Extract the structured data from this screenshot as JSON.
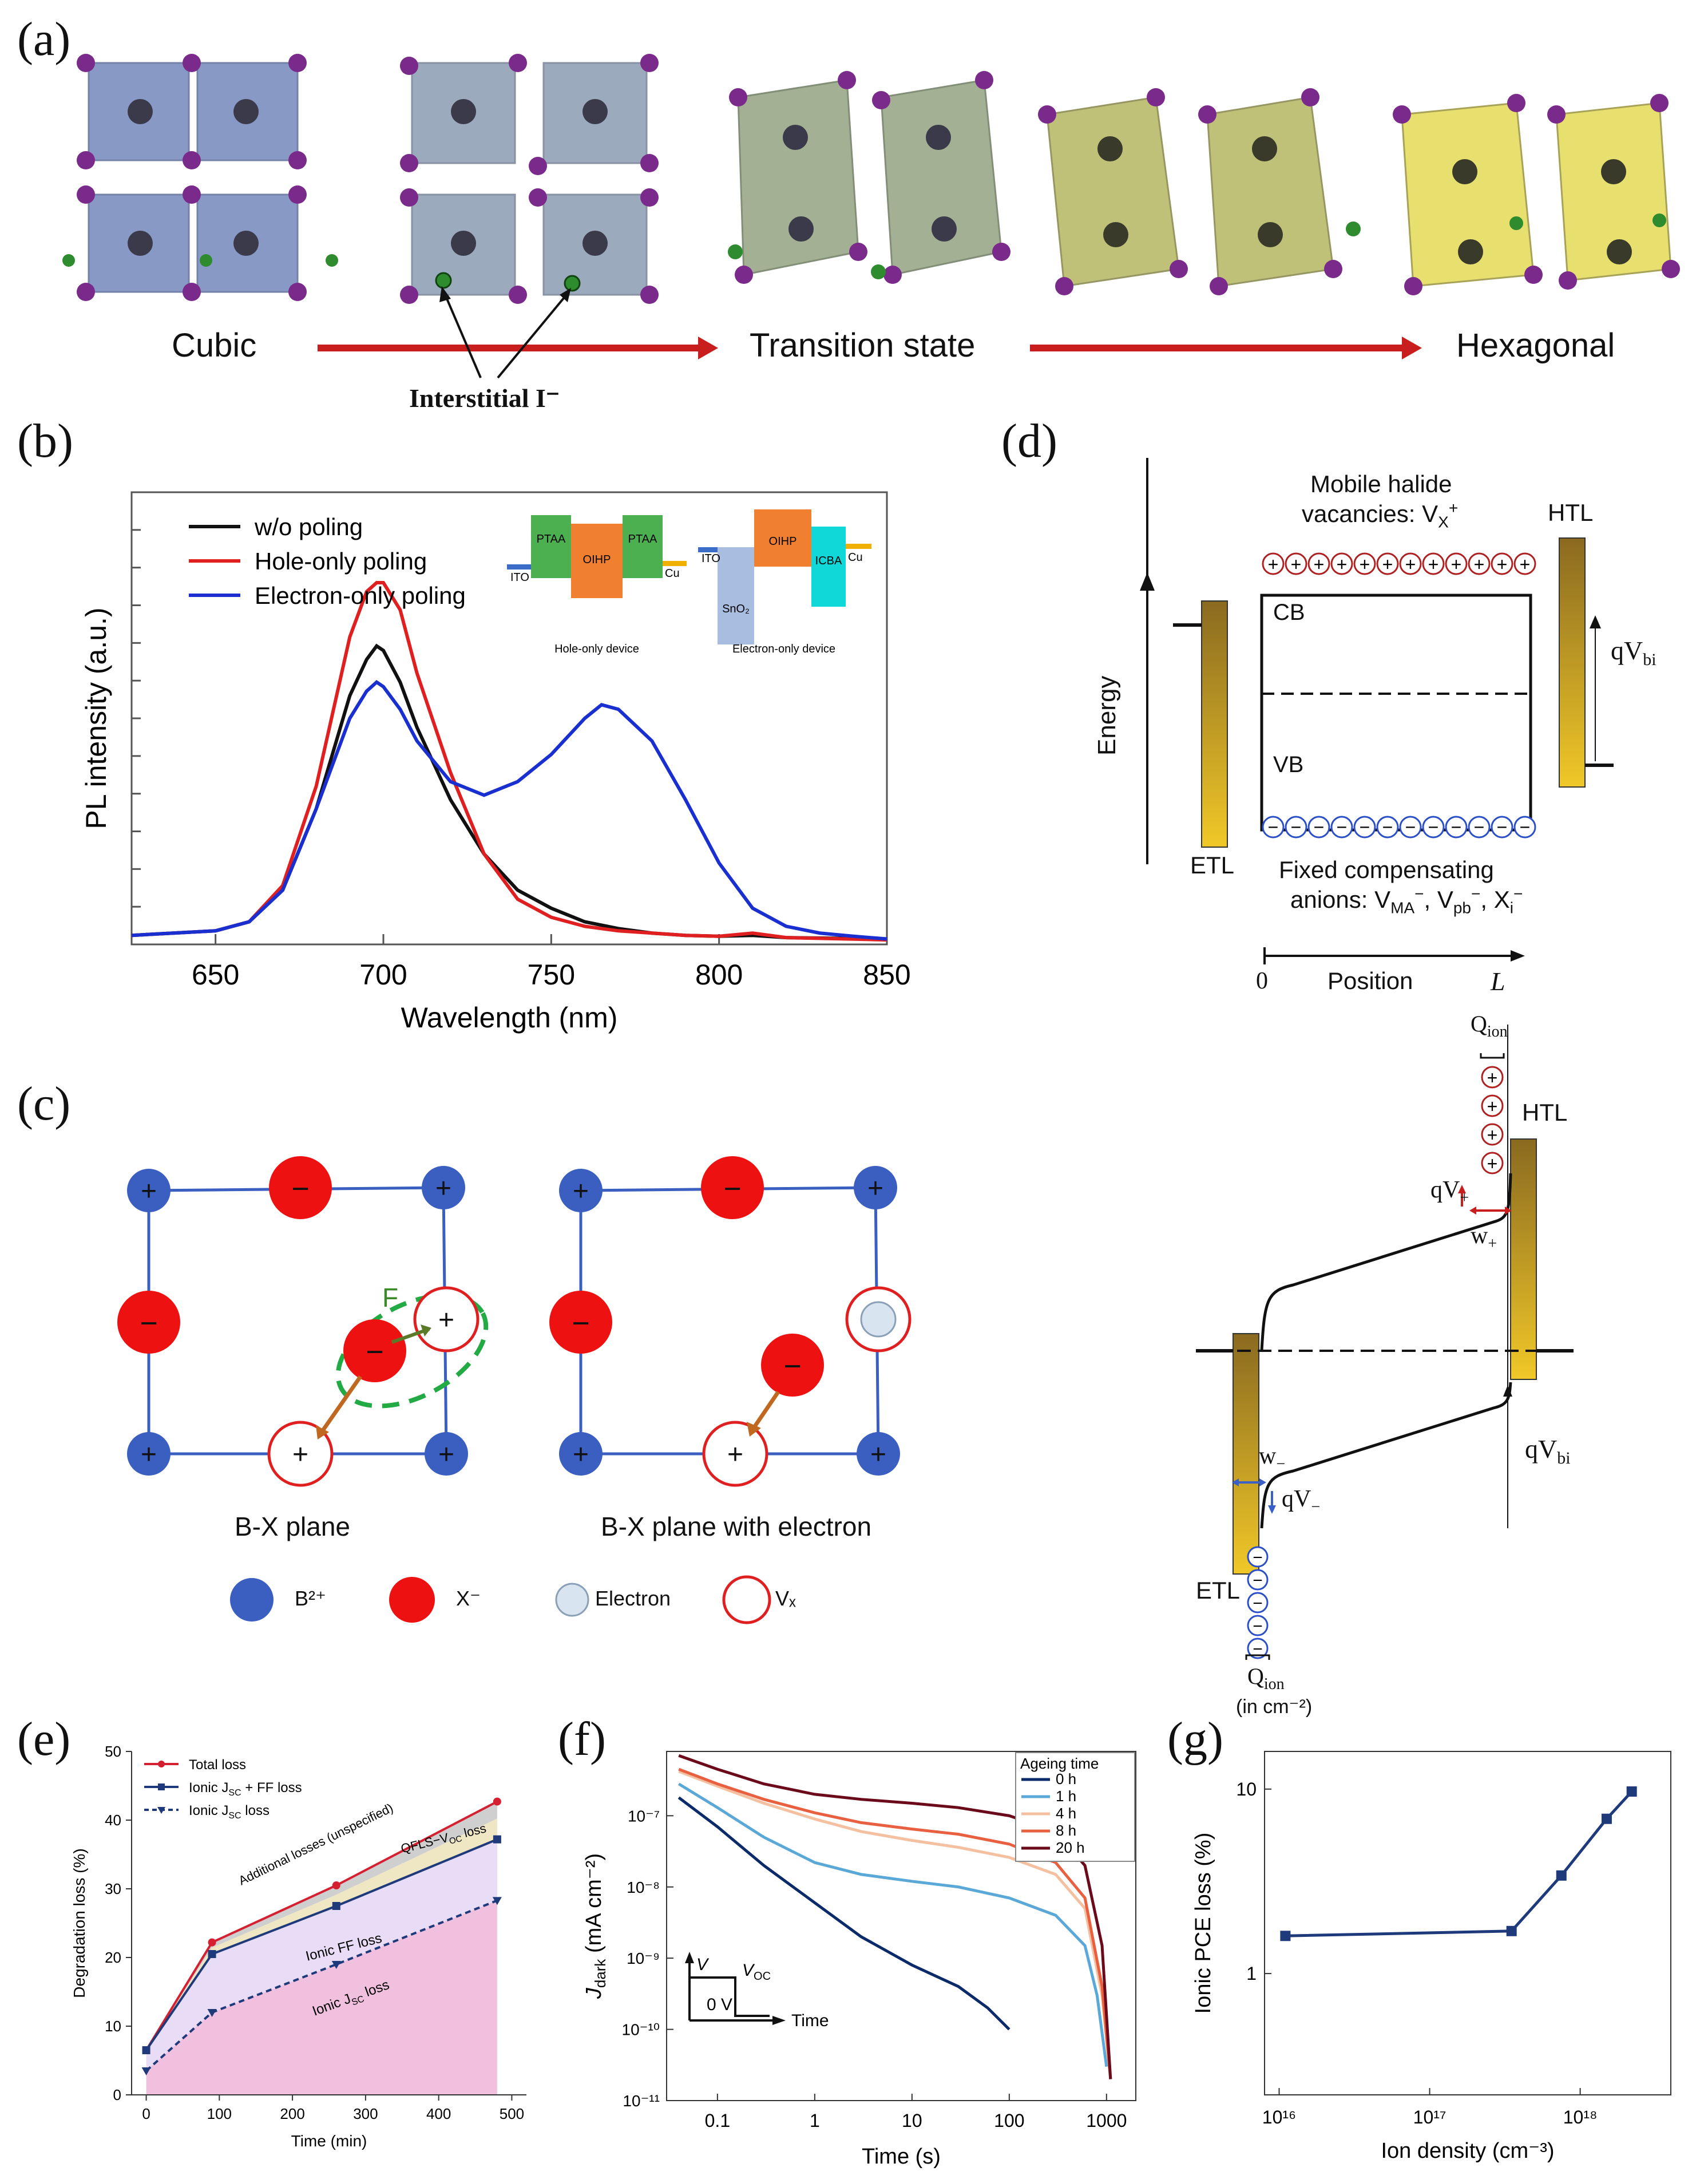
{
  "colors": {
    "red": "#e02020",
    "blue": "#1a2fd0",
    "black": "#111111",
    "navy": "#1f3a7a",
    "purple": "#7a2a8a",
    "green_ion": "#2e8b2e",
    "octa_blue": "#4a64a8",
    "octa_green": "#7d8f66",
    "octa_yellow": "#c8c238",
    "lattice_blue": "#3b5fc0",
    "ion_red": "#ee1111",
    "bar_top": "#8a6a20",
    "bar_bottom": "#f0c828"
  },
  "labels": {
    "a": "(a)",
    "b": "(b)",
    "c": "(c)",
    "d": "(d)",
    "e": "(e)",
    "f": "(f)",
    "g": "(g)"
  },
  "panel_a": {
    "stage_cubic": "Cubic",
    "stage_transition": "Transition state",
    "stage_hexagonal": "Hexagonal",
    "interstitial": "Interstitial I⁻"
  },
  "panel_b": {
    "inset_hole": {
      "left": "PTAA",
      "middle": "OIHP",
      "right": "PTAA",
      "ito": "ITO",
      "cu": "Cu",
      "caption": "Hole-only device"
    },
    "inset_electron": {
      "ito": "ITO",
      "sno2": "SnO₂",
      "oihp": "OIHP",
      "icba": "ICBA",
      "cu": "Cu",
      "caption": "Electron-only device"
    }
  },
  "panel_c": {
    "plane1_caption": "B-X plane",
    "plane2_caption": "B-X plane with electron",
    "force_label": "F",
    "plus": "+",
    "minus": "−",
    "legend": {
      "b": "B²⁺",
      "x": "X⁻",
      "electron": "Electron",
      "vx": "Vₓ"
    }
  },
  "panel_d": {
    "top": {
      "mobile_line1": "Mobile halide",
      "mobile_line2": "vacancies: V",
      "mobile_sub": "X",
      "mobile_sup": "+",
      "htl": "HTL",
      "etl": "ETL",
      "energy": "Energy",
      "cb": "CB",
      "vb": "VB",
      "qvbi": "qV",
      "qvbi_sub": "bi",
      "fixed_line1": "Fixed compensating",
      "fixed_line2": "anions: V",
      "ma": "MA",
      "pb": "pb",
      "xi": "X",
      "i_sub": "i",
      "position": "Position",
      "zero": "0",
      "L": "L"
    },
    "bottom": {
      "qion": "Q",
      "qion_sub": "ion",
      "qion_unit": "(in cm⁻²)",
      "htl": "HTL",
      "etl": "ETL",
      "qv_plus": "qV",
      "plus_sub": "+",
      "w_plus": "w",
      "qv_minus": "qV",
      "minus_sub": "−",
      "w_minus": "w",
      "qvbi": "qV",
      "qvbi_sub": "bi"
    }
  },
  "panel_e": {
    "region_labels": {
      "additional": "Additional losses (unspecified)",
      "qfls": "QFLS−V",
      "qfls_sub": "OC",
      "qfls_end": " loss",
      "ff": "Ionic FF loss",
      "jsc": "Ionic J",
      "jsc_sub": "SC",
      "jsc_end": " loss"
    },
    "legend_jsc_ff_suffix": " + FF loss"
  },
  "panel_f": {
    "inset": {
      "V": "V",
      "Voc": "V",
      "Voc_sub": "OC",
      "zeroV": "0 V",
      "time": "Time"
    }
  },
  "chart_data": [
    {
      "id": "b",
      "type": "line",
      "title": "",
      "xlabel": "Wavelength (nm)",
      "ylabel": "PL intensity (a.u.)",
      "xlim": [
        625,
        850
      ],
      "ylim": [
        0,
        1.0
      ],
      "xticks": [
        650,
        700,
        750,
        800,
        850
      ],
      "series": [
        {
          "name": "w/o poling",
          "color": "#111111",
          "x": [
            625,
            650,
            660,
            670,
            680,
            690,
            695,
            698,
            700,
            705,
            710,
            720,
            730,
            740,
            750,
            760,
            770,
            780,
            790,
            800,
            810,
            820,
            850
          ],
          "y": [
            0.02,
            0.03,
            0.05,
            0.12,
            0.3,
            0.55,
            0.63,
            0.66,
            0.65,
            0.58,
            0.48,
            0.32,
            0.2,
            0.12,
            0.08,
            0.05,
            0.035,
            0.025,
            0.02,
            0.018,
            0.02,
            0.015,
            0.012
          ]
        },
        {
          "name": "Hole-only poling",
          "color": "#e02020",
          "x": [
            625,
            650,
            660,
            670,
            680,
            690,
            695,
            698,
            700,
            705,
            710,
            720,
            730,
            740,
            750,
            760,
            770,
            780,
            790,
            800,
            810,
            820,
            850
          ],
          "y": [
            0.02,
            0.03,
            0.05,
            0.13,
            0.35,
            0.68,
            0.78,
            0.8,
            0.8,
            0.74,
            0.6,
            0.38,
            0.2,
            0.1,
            0.06,
            0.04,
            0.03,
            0.025,
            0.02,
            0.018,
            0.025,
            0.015,
            0.01
          ]
        },
        {
          "name": "Electron-only poling",
          "color": "#1a2fd0",
          "x": [
            625,
            650,
            660,
            670,
            680,
            690,
            695,
            698,
            700,
            705,
            710,
            720,
            730,
            740,
            750,
            760,
            765,
            770,
            780,
            790,
            800,
            810,
            820,
            830,
            840,
            850
          ],
          "y": [
            0.02,
            0.03,
            0.05,
            0.12,
            0.3,
            0.5,
            0.56,
            0.58,
            0.57,
            0.52,
            0.45,
            0.36,
            0.33,
            0.36,
            0.42,
            0.5,
            0.53,
            0.52,
            0.45,
            0.32,
            0.18,
            0.08,
            0.04,
            0.025,
            0.018,
            0.012
          ]
        }
      ]
    },
    {
      "id": "e",
      "type": "area",
      "xlabel": "Time (min)",
      "ylabel": "Degradation loss (%)",
      "xlim": [
        -20,
        520
      ],
      "ylim": [
        0,
        50
      ],
      "xticks": [
        0,
        100,
        200,
        300,
        400,
        500
      ],
      "yticks": [
        0,
        10,
        20,
        30,
        40,
        50
      ],
      "series": [
        {
          "name": "Total loss",
          "color": "#d42030",
          "x": [
            0,
            90,
            260,
            480
          ],
          "y": [
            6.5,
            22.2,
            30.5,
            42.7
          ]
        },
        {
          "name": "Ionic J",
          "name_sub": "SC",
          "color": "#1f3a7a",
          "x": [
            0,
            90,
            260,
            480
          ],
          "y": [
            6.5,
            20.5,
            27.5,
            37.2
          ]
        },
        {
          "name": "Ionic J",
          "name_sub": "SC",
          "name_suffix": " loss",
          "color": "#1f3a7a",
          "x": [
            0,
            90,
            260,
            480
          ],
          "y": [
            3.5,
            12.0,
            19.0,
            28.3
          ]
        }
      ]
    },
    {
      "id": "f",
      "type": "line",
      "xlabel": "Time (s)",
      "ylabel": "J",
      "ylabel_sub": "dark",
      "ylabel_unit": " (mA cm⁻²)",
      "xscale": "log",
      "yscale": "log",
      "xlim": [
        0.03,
        2000
      ],
      "ylim": [
        1e-11,
        8e-07
      ],
      "xticks": [
        0.1,
        1,
        10,
        100,
        1000
      ],
      "xtick_labels": [
        "0.1",
        "1",
        "10",
        "100",
        "1000"
      ],
      "yticks": [
        1e-11,
        1e-10,
        1e-09,
        1e-08,
        1e-07
      ],
      "ytick_labels": [
        "10⁻¹¹",
        "10⁻¹⁰",
        "10⁻⁹",
        "10⁻⁸",
        "10⁻⁷"
      ],
      "legend_title": "Ageing time",
      "series": [
        {
          "name": "0 h",
          "color": "#0a2a6a",
          "x": [
            0.04,
            0.1,
            0.3,
            1,
            3,
            10,
            30,
            60,
            100
          ],
          "y": [
            1.8e-07,
            7e-08,
            2e-08,
            6e-09,
            2e-09,
            8e-10,
            4e-10,
            2e-10,
            1e-10
          ]
        },
        {
          "name": "1 h",
          "color": "#5aa8d8",
          "x": [
            0.04,
            0.1,
            0.3,
            1,
            3,
            10,
            30,
            100,
            300,
            600,
            800,
            1000
          ],
          "y": [
            2.8e-07,
            1.3e-07,
            5e-08,
            2.2e-08,
            1.5e-08,
            1.2e-08,
            1e-08,
            7e-09,
            4e-09,
            1.5e-09,
            3e-10,
            3e-11
          ]
        },
        {
          "name": "4 h",
          "color": "#f5c0a0",
          "x": [
            0.04,
            0.1,
            0.3,
            1,
            3,
            10,
            30,
            100,
            300,
            600,
            900,
            1100
          ],
          "y": [
            4.2e-07,
            2.6e-07,
            1.5e-07,
            9e-08,
            6e-08,
            4.5e-08,
            3.6e-08,
            2.6e-08,
            1.5e-08,
            5e-09,
            3e-10,
            2e-11
          ]
        },
        {
          "name": "8 h",
          "color": "#e86040",
          "x": [
            0.04,
            0.1,
            0.3,
            1,
            3,
            10,
            30,
            100,
            300,
            600,
            900,
            1100
          ],
          "y": [
            4.5e-07,
            2.8e-07,
            1.7e-07,
            1.1e-07,
            8e-08,
            6.5e-08,
            5.5e-08,
            4e-08,
            2.2e-08,
            7e-09,
            4e-10,
            2e-11
          ]
        },
        {
          "name": "20 h",
          "color": "#6a0a1a",
          "x": [
            0.04,
            0.1,
            0.3,
            1,
            3,
            10,
            30,
            100,
            300,
            600,
            900,
            1100
          ],
          "y": [
            7e-07,
            4.5e-07,
            2.8e-07,
            2e-07,
            1.7e-07,
            1.5e-07,
            1.3e-07,
            1e-07,
            6e-08,
            2e-08,
            1.5e-09,
            2e-11
          ]
        }
      ]
    },
    {
      "id": "g",
      "type": "line",
      "xlabel": "Ion density (cm⁻³)",
      "ylabel": "Ionic PCE loss (%)",
      "xscale": "log",
      "yscale": "log",
      "xlim": [
        8000000000000000.0,
        4e+18
      ],
      "ylim": [
        0.22,
        16
      ],
      "xticks": [
        1e+16,
        1e+17,
        1e+18
      ],
      "xtick_labels": [
        "10¹⁶",
        "10¹⁷",
        "10¹⁸"
      ],
      "yticks": [
        1,
        10
      ],
      "ytick_labels": [
        "1",
        "10"
      ],
      "series": [
        {
          "name": "Ionic PCE loss",
          "color": "#1f3a7a",
          "x": [
            1.1e+16,
            3.5e+17,
            7.5e+17,
            1.5e+18,
            2.2e+18
          ],
          "y": [
            1.6,
            1.7,
            3.4,
            6.9,
            9.7
          ]
        }
      ]
    }
  ]
}
